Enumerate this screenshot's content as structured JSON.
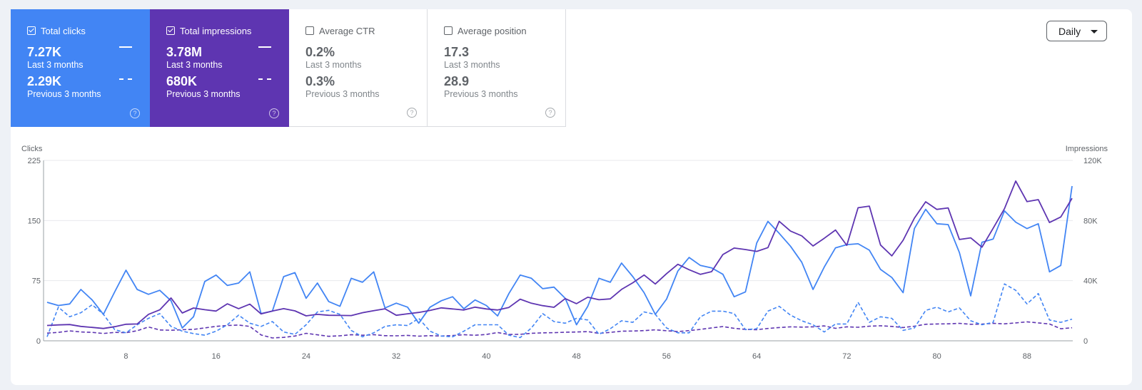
{
  "metrics": {
    "clicks": {
      "label": "Total clicks",
      "checked": true,
      "value": "7.27K",
      "period": "Last 3 months",
      "prev_value": "2.29K",
      "prev_period": "Previous 3 months",
      "help": "?"
    },
    "impressions": {
      "label": "Total impressions",
      "checked": true,
      "value": "3.78M",
      "period": "Last 3 months",
      "prev_value": "680K",
      "prev_period": "Previous 3 months",
      "help": "?"
    },
    "ctr": {
      "label": "Average CTR",
      "checked": false,
      "value": "0.2%",
      "period": "Last 3 months",
      "prev_value": "0.3%",
      "prev_period": "Previous 3 months",
      "help": "?"
    },
    "position": {
      "label": "Average position",
      "checked": false,
      "value": "17.3",
      "period": "Last 3 months",
      "prev_value": "28.9",
      "prev_period": "Previous 3 months",
      "help": "?"
    }
  },
  "controls": {
    "granularity": "Daily"
  },
  "colors": {
    "clicks": "#4285f4",
    "impressions": "#5e35b1"
  },
  "chart_data": {
    "type": "line",
    "left_axis_label": "Clicks",
    "right_axis_label": "Impressions",
    "left_ticks": [
      "0",
      "75",
      "150",
      "225"
    ],
    "right_ticks": [
      "0",
      "40K",
      "80K",
      "120K"
    ],
    "x_ticks": [
      "8",
      "16",
      "24",
      "32",
      "40",
      "48",
      "56",
      "64",
      "72",
      "80",
      "88"
    ],
    "ylim_left": [
      0,
      225
    ],
    "ylim_right": [
      0,
      120000
    ],
    "grid": "horizontal",
    "x": [
      1,
      2,
      3,
      4,
      5,
      6,
      7,
      8,
      9,
      10,
      11,
      12,
      13,
      14,
      15,
      16,
      17,
      18,
      19,
      20,
      21,
      22,
      23,
      24,
      25,
      26,
      27,
      28,
      29,
      30,
      31,
      32,
      33,
      34,
      35,
      36,
      37,
      38,
      39,
      40,
      41,
      42,
      43,
      44,
      45,
      46,
      47,
      48,
      49,
      50,
      51,
      52,
      53,
      54,
      55,
      56,
      57,
      58,
      59,
      60,
      61,
      62,
      63,
      64,
      65,
      66,
      67,
      68,
      69,
      70,
      71,
      72,
      73,
      74,
      75,
      76,
      77,
      78,
      79,
      80,
      81,
      82,
      83,
      84,
      85,
      86,
      87,
      88,
      89,
      90,
      91,
      92
    ],
    "series": [
      {
        "name": "Total clicks",
        "period": "Last 3 months",
        "axis": "left",
        "style": "solid",
        "color": "#4285f4",
        "values": [
          48,
          44,
          46,
          64,
          51,
          33,
          61,
          88,
          64,
          58,
          63,
          50,
          16,
          30,
          74,
          82,
          69,
          72,
          86,
          34,
          37,
          80,
          85,
          53,
          72,
          49,
          43,
          78,
          73,
          86,
          41,
          47,
          42,
          22,
          42,
          50,
          55,
          40,
          51,
          44,
          31,
          59,
          82,
          78,
          65,
          67,
          53,
          20,
          43,
          78,
          73,
          97,
          80,
          60,
          33,
          52,
          87,
          104,
          94,
          91,
          83,
          55,
          61,
          122,
          149,
          134,
          118,
          98,
          64,
          92,
          116,
          120,
          121,
          113,
          89,
          79,
          60,
          140,
          164,
          146,
          145,
          110,
          56,
          123,
          127,
          162,
          148,
          140,
          146,
          86,
          94,
          193
        ]
      },
      {
        "name": "Total impressions",
        "period": "Last 3 months",
        "axis": "right",
        "style": "solid",
        "color": "#5e35b1",
        "values": [
          10200,
          10600,
          10800,
          9600,
          8900,
          8200,
          9400,
          11000,
          11200,
          17600,
          20600,
          28500,
          18500,
          21800,
          20700,
          19800,
          24600,
          21400,
          24400,
          17900,
          19800,
          21400,
          19900,
          16600,
          17600,
          17000,
          16900,
          16800,
          18700,
          20000,
          21300,
          17000,
          18000,
          18900,
          20200,
          21900,
          21200,
          20500,
          22400,
          21200,
          20500,
          22200,
          27700,
          25000,
          23400,
          22300,
          28100,
          24700,
          29000,
          27300,
          27900,
          34200,
          38600,
          43800,
          37800,
          44700,
          50900,
          47300,
          44200,
          46000,
          57400,
          61700,
          60700,
          59500,
          62000,
          79500,
          73000,
          69800,
          63100,
          68200,
          73700,
          63500,
          88500,
          89600,
          63700,
          56500,
          66900,
          81600,
          92500,
          87400,
          88400,
          67400,
          68500,
          62300,
          74900,
          87900,
          106300,
          92600,
          93900,
          78700,
          82400,
          94800
        ]
      },
      {
        "name": "Total clicks",
        "period": "Previous 3 months",
        "axis": "left",
        "style": "dashed",
        "color": "#4285f4",
        "values": [
          5,
          42,
          30,
          35,
          45,
          33,
          14,
          10,
          20,
          28,
          34,
          18,
          12,
          9,
          7,
          12,
          20,
          32,
          22,
          18,
          24,
          11,
          8,
          20,
          36,
          38,
          33,
          13,
          5,
          10,
          18,
          20,
          19,
          28,
          12,
          6,
          5,
          12,
          20,
          20,
          20,
          7,
          4,
          16,
          34,
          24,
          22,
          28,
          26,
          8,
          15,
          25,
          23,
          36,
          33,
          16,
          10,
          10,
          30,
          37,
          37,
          34,
          14,
          15,
          37,
          43,
          32,
          25,
          20,
          11,
          21,
          21,
          48,
          23,
          30,
          28,
          13,
          16,
          38,
          42,
          36,
          41,
          25,
          20,
          23,
          71,
          63,
          46,
          59,
          26,
          23,
          27
        ]
      },
      {
        "name": "Total impressions",
        "period": "Previous 3 months",
        "axis": "right",
        "style": "dashed",
        "color": "#5e35b1",
        "values": [
          5100,
          5600,
          6600,
          5900,
          5600,
          4900,
          5600,
          5400,
          6700,
          9200,
          7200,
          7000,
          7400,
          7600,
          8600,
          9600,
          10200,
          10500,
          9600,
          3900,
          1900,
          2300,
          3200,
          5000,
          4000,
          3000,
          3300,
          4100,
          3700,
          4100,
          3400,
          3300,
          3600,
          3100,
          3400,
          3200,
          3500,
          4100,
          3700,
          4200,
          5500,
          4200,
          4300,
          5000,
          5300,
          5400,
          5700,
          5900,
          6100,
          5000,
          5600,
          6400,
          6500,
          6800,
          7300,
          6700,
          6100,
          6800,
          7600,
          8600,
          9500,
          8300,
          7600,
          7400,
          8200,
          8800,
          9300,
          9100,
          9300,
          9900,
          8300,
          9300,
          9000,
          9700,
          10000,
          9600,
          8800,
          9700,
          11000,
          11200,
          11300,
          11600,
          11000,
          11100,
          11600,
          11300,
          11900,
          12600,
          11900,
          11200,
          8000,
          8700
        ]
      }
    ]
  }
}
